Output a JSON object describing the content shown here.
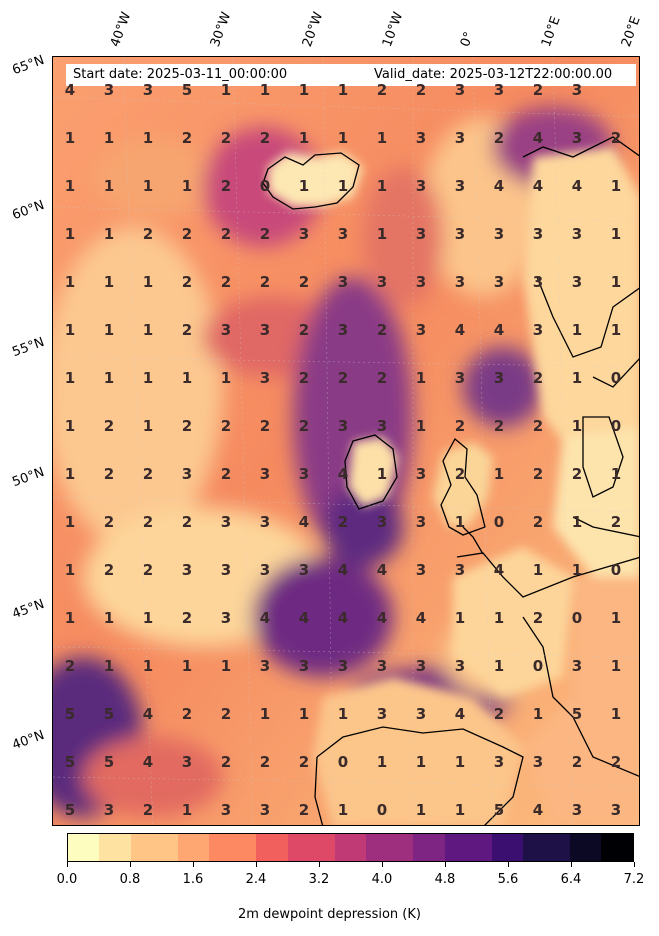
{
  "header": {
    "start_date": "Start date: 2025-03-11_00:00:00",
    "valid_date": "Valid_date: 2025-03-12T22:00:00.00"
  },
  "longitude_labels": [
    "40°W",
    "30°W",
    "20°W",
    "10°W",
    "0°",
    "10°E",
    "20°E"
  ],
  "latitude_labels": [
    "65°N",
    "60°N",
    "55°N",
    "50°N",
    "45°N",
    "40°N"
  ],
  "grid_values": [
    [
      "4",
      "3",
      "3",
      "5",
      "1",
      "1",
      "1",
      "1",
      "2",
      "2",
      "3",
      "3",
      "2",
      "3",
      ""
    ],
    [
      "1",
      "1",
      "1",
      "2",
      "2",
      "2",
      "1",
      "1",
      "1",
      "3",
      "3",
      "2",
      "4",
      "3",
      "2"
    ],
    [
      "1",
      "1",
      "1",
      "1",
      "2",
      "0",
      "1",
      "1",
      "1",
      "3",
      "3",
      "4",
      "4",
      "4",
      "1"
    ],
    [
      "1",
      "1",
      "2",
      "2",
      "2",
      "2",
      "3",
      "3",
      "1",
      "3",
      "3",
      "3",
      "3",
      "3",
      "1"
    ],
    [
      "1",
      "1",
      "1",
      "2",
      "2",
      "2",
      "2",
      "3",
      "3",
      "3",
      "3",
      "3",
      "3",
      "3",
      "1"
    ],
    [
      "1",
      "1",
      "1",
      "2",
      "3",
      "3",
      "2",
      "3",
      "2",
      "3",
      "4",
      "4",
      "3",
      "1",
      "1"
    ],
    [
      "1",
      "1",
      "1",
      "1",
      "1",
      "3",
      "2",
      "2",
      "2",
      "1",
      "3",
      "3",
      "2",
      "1",
      "0"
    ],
    [
      "1",
      "2",
      "1",
      "2",
      "2",
      "2",
      "2",
      "3",
      "3",
      "1",
      "2",
      "2",
      "2",
      "1",
      "0"
    ],
    [
      "1",
      "2",
      "2",
      "3",
      "2",
      "3",
      "3",
      "4",
      "1",
      "3",
      "2",
      "1",
      "2",
      "2",
      "1"
    ],
    [
      "1",
      "2",
      "2",
      "2",
      "3",
      "3",
      "4",
      "2",
      "3",
      "3",
      "1",
      "0",
      "2",
      "1",
      "2"
    ],
    [
      "1",
      "2",
      "2",
      "3",
      "3",
      "3",
      "3",
      "4",
      "4",
      "3",
      "3",
      "4",
      "1",
      "1",
      "0"
    ],
    [
      "1",
      "1",
      "1",
      "2",
      "3",
      "4",
      "4",
      "4",
      "4",
      "4",
      "1",
      "1",
      "2",
      "0",
      "1"
    ],
    [
      "2",
      "1",
      "1",
      "1",
      "1",
      "3",
      "3",
      "3",
      "3",
      "3",
      "3",
      "1",
      "0",
      "3",
      "1"
    ],
    [
      "5",
      "5",
      "4",
      "2",
      "2",
      "1",
      "1",
      "1",
      "3",
      "3",
      "4",
      "2",
      "1",
      "5",
      "1"
    ],
    [
      "5",
      "5",
      "4",
      "3",
      "2",
      "2",
      "2",
      "0",
      "1",
      "1",
      "1",
      "3",
      "3",
      "2",
      "2"
    ],
    [
      "5",
      "3",
      "2",
      "1",
      "3",
      "3",
      "2",
      "1",
      "0",
      "1",
      "1",
      "5",
      "4",
      "3",
      "3"
    ]
  ],
  "colorbar": {
    "title": "2m dewpoint depression (K)",
    "tick_labels": [
      "0.0",
      "0.8",
      "1.6",
      "2.4",
      "3.2",
      "4.0",
      "4.8",
      "5.6",
      "6.4",
      "7.2"
    ],
    "range": [
      0.0,
      7.2
    ],
    "colors": [
      "#fcfdbf",
      "#fde2a1",
      "#fec587",
      "#fea772",
      "#fc8961",
      "#f1605d",
      "#de4968",
      "#c03a76",
      "#9e2f7f",
      "#7e2482",
      "#5f187f",
      "#3b0f70",
      "#1d1147",
      "#0b0924",
      "#000004"
    ]
  },
  "colors": {
    "land": "#fdf0c4",
    "coast": "#000000",
    "grid_text": "#3a2a2a"
  }
}
